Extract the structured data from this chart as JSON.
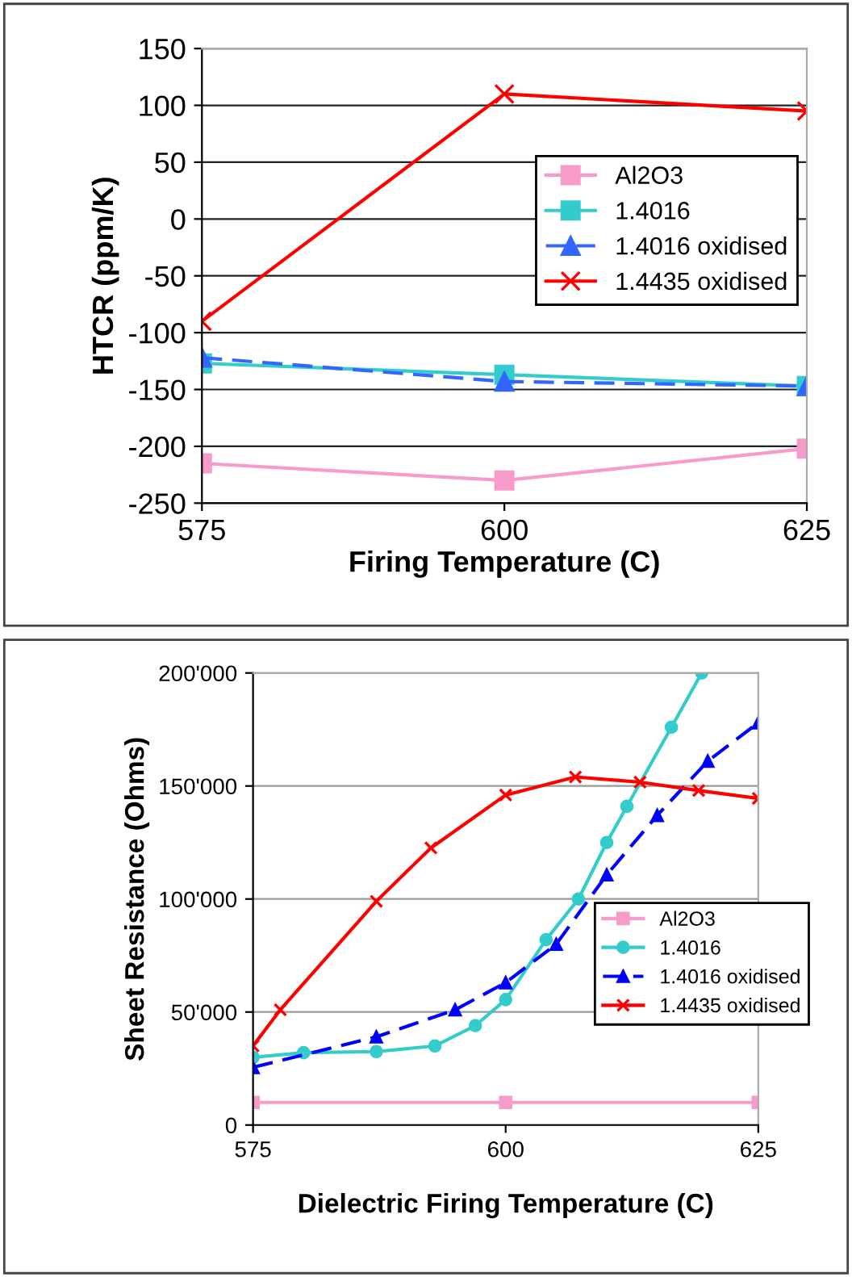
{
  "chart_data": [
    {
      "type": "line",
      "xlabel": "Firing Temperature (C)",
      "ylabel": "HTCR (ppm/K)",
      "xlim": [
        575,
        625
      ],
      "xticks": [
        575,
        600,
        625
      ],
      "ylim": [
        -250,
        150
      ],
      "yticks": [
        -250,
        -200,
        -150,
        -100,
        -50,
        0,
        50,
        100,
        150
      ],
      "grid": "y",
      "legend": "right",
      "x": [
        575,
        600,
        625
      ],
      "series": [
        {
          "name": "Al2O3",
          "color": "#f79bcb",
          "marker": "square",
          "values": [
            -215,
            -230,
            -202
          ]
        },
        {
          "name": "1.4016",
          "color": "#33cccc",
          "marker": "square",
          "values": [
            -127,
            -137,
            -147
          ]
        },
        {
          "name": "1.4016 oxidised",
          "color": "#3366ff",
          "marker": "triangle",
          "line_style": "dashed",
          "values": [
            -122,
            -143,
            -147
          ]
        },
        {
          "name": "1.4435 oxidised",
          "color": "#ff0000",
          "marker": "cross",
          "values": [
            -90,
            110,
            95
          ]
        }
      ]
    },
    {
      "type": "line",
      "xlabel": "Dielectric Firing Temperature (C)",
      "ylabel": "Sheet Resistance (Ohms)",
      "xlim": [
        575,
        625
      ],
      "xticks": [
        575,
        600,
        625
      ],
      "ylim": [
        0,
        200000
      ],
      "yticks": [
        {
          "value": 0,
          "label": "0"
        },
        {
          "value": 50000,
          "label": "50'000"
        },
        {
          "value": 100000,
          "label": "100'000"
        },
        {
          "value": 150000,
          "label": "150'000"
        },
        {
          "value": 200000,
          "label": "200'000"
        }
      ],
      "grid": "y",
      "legend": "bottom right",
      "series": [
        {
          "name": "Al2O3",
          "color": "#f79bcb",
          "marker": "square",
          "x": [
            575,
            600,
            625
          ],
          "values": [
            10000,
            10000,
            10000
          ]
        },
        {
          "name": "1.4016",
          "color": "#33cccc",
          "marker": "circle",
          "x": [
            575,
            580,
            587.2,
            593,
            597,
            600,
            604,
            607.2,
            610,
            612,
            616.4,
            619.4
          ],
          "values": [
            30000,
            32000,
            32500,
            35000,
            44000,
            55500,
            82000,
            100000,
            125000,
            141000,
            176000,
            200000
          ]
        },
        {
          "name": "1.4016 oxidised",
          "color": "#0000ff",
          "marker": "triangle",
          "line_style": "dashed",
          "x": [
            575,
            587.2,
            595,
            600,
            605,
            610,
            615,
            620,
            625
          ],
          "values": [
            25500,
            39000,
            51000,
            63000,
            80000,
            110700,
            137000,
            161000,
            178000
          ]
        },
        {
          "name": "1.4435 oxidised",
          "color": "#ff0000",
          "marker": "cross",
          "x": [
            575,
            577.7,
            587.2,
            592.6,
            600,
            606.9,
            613.3,
            619.1,
            625
          ],
          "values": [
            35000,
            51000,
            99000,
            122600,
            146000,
            154000,
            151700,
            148000,
            144500
          ]
        }
      ]
    }
  ]
}
